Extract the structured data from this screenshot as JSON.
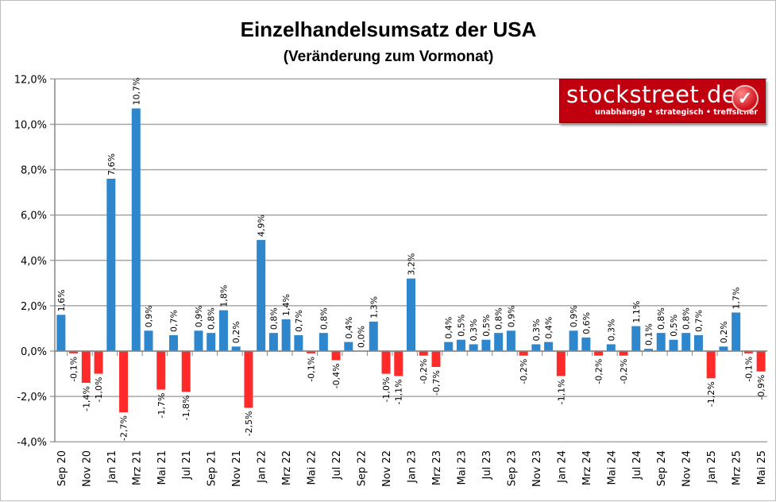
{
  "chart_data": {
    "type": "bar",
    "title": "Einzelhandelsumsatz der USA",
    "subtitle": "(Veränderung zum Vormonat)",
    "xlabel": "",
    "ylabel": "",
    "ylim": [
      -4,
      12
    ],
    "yticks": [
      "-4,0%",
      "-2,0%",
      "0,0%",
      "2,0%",
      "4,0%",
      "6,0%",
      "8,0%",
      "10,0%",
      "12,0%"
    ],
    "ytick_values": [
      -4,
      -2,
      0,
      2,
      4,
      6,
      8,
      10,
      12
    ],
    "grid": true,
    "colors": {
      "positive": "#2e86cc",
      "negative": "#ff2b2b",
      "grid": "#a6a6a6"
    },
    "categories": [
      "Sep 20",
      "Okt 20",
      "Nov 20",
      "Dez 20",
      "Jan 21",
      "Feb 21",
      "Mrz 21",
      "Apr 21",
      "Mai 21",
      "Jun 21",
      "Jul 21",
      "Aug 21",
      "Sep 21",
      "Okt 21",
      "Nov 21",
      "Dez 21",
      "Jan 22",
      "Feb 22",
      "Mrz 22",
      "Apr 22",
      "Mai 22",
      "Jun 22",
      "Jul 22",
      "Aug 22",
      "Sep 22",
      "Okt 22",
      "Nov 22",
      "Dez 22",
      "Jan 23",
      "Feb 23",
      "Mrz 23",
      "Apr 23",
      "Mai 23",
      "Jun 23",
      "Jul 23",
      "Aug 23",
      "Sep 23",
      "Okt 23",
      "Nov 23",
      "Dez 23",
      "Jan 24",
      "Feb 24",
      "Mrz 24",
      "Apr 24",
      "Mai 24",
      "Jun 24",
      "Jul 24",
      "Aug 24",
      "Sep 24",
      "Okt 24",
      "Nov 24",
      "Dez 24",
      "Jan 25",
      "Feb 25",
      "Mrz 25",
      "Apr 25",
      "Mai 25"
    ],
    "shown_category_labels": [
      "Sep 20",
      "Nov 20",
      "Jan 21",
      "Mrz 21",
      "Mai 21",
      "Jul 21",
      "Sep 21",
      "Nov 21",
      "Jan 22",
      "Mrz 22",
      "Mai 22",
      "Jul 22",
      "Sep 22",
      "Nov 22",
      "Jan 23",
      "Mrz 23",
      "Mai 23",
      "Jul 23",
      "Sep 23",
      "Nov 23",
      "Jan 24",
      "Mrz 24",
      "Mai 24",
      "Jul 24",
      "Sep 24",
      "Nov 24",
      "Jan 25",
      "Mrz 25",
      "Mai 25"
    ],
    "values": [
      1.6,
      -0.1,
      -1.4,
      -1.0,
      7.6,
      -2.7,
      10.7,
      0.9,
      -1.7,
      0.7,
      -1.8,
      0.9,
      0.8,
      1.8,
      0.2,
      -2.5,
      4.9,
      0.8,
      1.4,
      0.7,
      -0.1,
      0.8,
      -0.4,
      0.4,
      0.0,
      1.3,
      -1.0,
      -1.1,
      3.2,
      -0.2,
      -0.7,
      0.4,
      0.5,
      0.3,
      0.5,
      0.8,
      0.9,
      -0.2,
      0.3,
      0.4,
      -1.1,
      0.9,
      0.6,
      -0.2,
      0.3,
      -0.2,
      1.1,
      0.1,
      0.8,
      0.5,
      0.8,
      0.7,
      -1.2,
      0.2,
      1.7,
      -0.1,
      -0.9
    ],
    "data_labels": [
      "1,6%",
      "-0,1%",
      "-1,4%",
      "-1,0%",
      "7,6%",
      "-2,7%",
      "10,7%",
      "0,9%",
      "-1,7%",
      "0,7%",
      "-1,8%",
      "0,9%",
      "0,8%",
      "1,8%",
      "0,2%",
      "-2,5%",
      "4,9%",
      "0,8%",
      "1,4%",
      "0,7%",
      "-0,1%",
      "0,8%",
      "-0,4%",
      "0,4%",
      "0,0%",
      "1,3%",
      "-1,0%",
      "-1,1%",
      "3,2%",
      "-0,2%",
      "-0,7%",
      "0,4%",
      "0,5%",
      "0,3%",
      "0,5%",
      "0,8%",
      "0,9%",
      "-0,2%",
      "0,3%",
      "0,4%",
      "-1,1%",
      "0,9%",
      "0,6%",
      "-0,2%",
      "0,3%",
      "-0,2%",
      "1,1%",
      "0,1%",
      "0,8%",
      "0,5%",
      "0,8%",
      "0,7%",
      "-1,2%",
      "0,2%",
      "1,7%",
      "-0,1%",
      "-0,9%"
    ]
  },
  "logo": {
    "name": "stockstreet.de",
    "slogan": "unabhängig • strategisch • treffsicher",
    "icon": "checkmark-circle-icon"
  }
}
